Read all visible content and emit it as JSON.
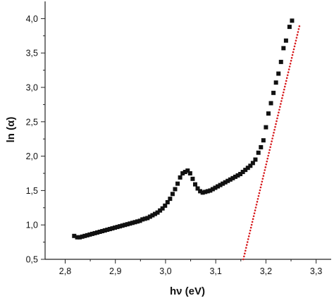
{
  "chart_data": {
    "type": "scatter",
    "title": "",
    "xlabel": "hν (eV)",
    "ylabel": "ln (α)",
    "xlim": [
      2.76,
      3.33
    ],
    "ylim": [
      0.5,
      4.25
    ],
    "x_ticks": [
      {
        "value": 2.8,
        "label": "2,8"
      },
      {
        "value": 2.9,
        "label": "2,9"
      },
      {
        "value": 3.0,
        "label": "3,0"
      },
      {
        "value": 3.1,
        "label": "3,1"
      },
      {
        "value": 3.2,
        "label": "3,2"
      },
      {
        "value": 3.3,
        "label": "3,3"
      }
    ],
    "y_ticks": [
      {
        "value": 0.5,
        "label": "0,5"
      },
      {
        "value": 1.0,
        "label": "1,0"
      },
      {
        "value": 1.5,
        "label": "1,5"
      },
      {
        "value": 2.0,
        "label": "2,0"
      },
      {
        "value": 2.5,
        "label": "2,5"
      },
      {
        "value": 3.0,
        "label": "3,0"
      },
      {
        "value": 3.5,
        "label": "3,5"
      },
      {
        "value": 4.0,
        "label": "4,0"
      }
    ],
    "grid": false,
    "marker_color": "#111111",
    "fit_color": "#d7191c",
    "series": [
      {
        "marker": "square",
        "points": [
          [
            2.818,
            0.84
          ],
          [
            2.824,
            0.82
          ],
          [
            2.829,
            0.82
          ],
          [
            2.834,
            0.83
          ],
          [
            2.839,
            0.84
          ],
          [
            2.844,
            0.85
          ],
          [
            2.849,
            0.86
          ],
          [
            2.854,
            0.87
          ],
          [
            2.859,
            0.88
          ],
          [
            2.864,
            0.89
          ],
          [
            2.869,
            0.9
          ],
          [
            2.874,
            0.91
          ],
          [
            2.879,
            0.92
          ],
          [
            2.884,
            0.93
          ],
          [
            2.889,
            0.94
          ],
          [
            2.894,
            0.95
          ],
          [
            2.899,
            0.96
          ],
          [
            2.904,
            0.97
          ],
          [
            2.909,
            0.98
          ],
          [
            2.914,
            0.99
          ],
          [
            2.919,
            1.0
          ],
          [
            2.924,
            1.01
          ],
          [
            2.929,
            1.02
          ],
          [
            2.934,
            1.03
          ],
          [
            2.939,
            1.04
          ],
          [
            2.944,
            1.05
          ],
          [
            2.949,
            1.06
          ],
          [
            2.954,
            1.08
          ],
          [
            2.959,
            1.09
          ],
          [
            2.964,
            1.1
          ],
          [
            2.969,
            1.12
          ],
          [
            2.974,
            1.14
          ],
          [
            2.979,
            1.16
          ],
          [
            2.984,
            1.18
          ],
          [
            2.989,
            1.21
          ],
          [
            2.994,
            1.24
          ],
          [
            2.999,
            1.28
          ],
          [
            3.004,
            1.33
          ],
          [
            3.009,
            1.38
          ],
          [
            3.014,
            1.45
          ],
          [
            3.019,
            1.52
          ],
          [
            3.024,
            1.6
          ],
          [
            3.029,
            1.69
          ],
          [
            3.034,
            1.75
          ],
          [
            3.039,
            1.77
          ],
          [
            3.044,
            1.79
          ],
          [
            3.049,
            1.75
          ],
          [
            3.054,
            1.67
          ],
          [
            3.059,
            1.59
          ],
          [
            3.064,
            1.53
          ],
          [
            3.069,
            1.49
          ],
          [
            3.074,
            1.47
          ],
          [
            3.079,
            1.48
          ],
          [
            3.084,
            1.49
          ],
          [
            3.089,
            1.5
          ],
          [
            3.094,
            1.52
          ],
          [
            3.099,
            1.54
          ],
          [
            3.104,
            1.56
          ],
          [
            3.109,
            1.58
          ],
          [
            3.114,
            1.6
          ],
          [
            3.119,
            1.62
          ],
          [
            3.124,
            1.64
          ],
          [
            3.129,
            1.66
          ],
          [
            3.134,
            1.68
          ],
          [
            3.139,
            1.7
          ],
          [
            3.144,
            1.72
          ],
          [
            3.149,
            1.74
          ],
          [
            3.154,
            1.77
          ],
          [
            3.159,
            1.8
          ],
          [
            3.164,
            1.83
          ],
          [
            3.169,
            1.86
          ],
          [
            3.174,
            1.9
          ],
          [
            3.179,
            1.95
          ],
          [
            3.185,
            2.05
          ],
          [
            3.19,
            2.13
          ],
          [
            3.195,
            2.23
          ],
          [
            3.2,
            2.42
          ],
          [
            3.205,
            2.62
          ],
          [
            3.21,
            2.77
          ],
          [
            3.215,
            2.92
          ],
          [
            3.22,
            3.07
          ],
          [
            3.225,
            3.2
          ],
          [
            3.23,
            3.37
          ],
          [
            3.235,
            3.57
          ],
          [
            3.24,
            3.68
          ],
          [
            3.247,
            3.88
          ],
          [
            3.252,
            3.97
          ]
        ]
      }
    ],
    "fit_line": {
      "style": "dotted",
      "points": [
        [
          3.155,
          0.5
        ],
        [
          3.268,
          3.93
        ]
      ]
    }
  }
}
